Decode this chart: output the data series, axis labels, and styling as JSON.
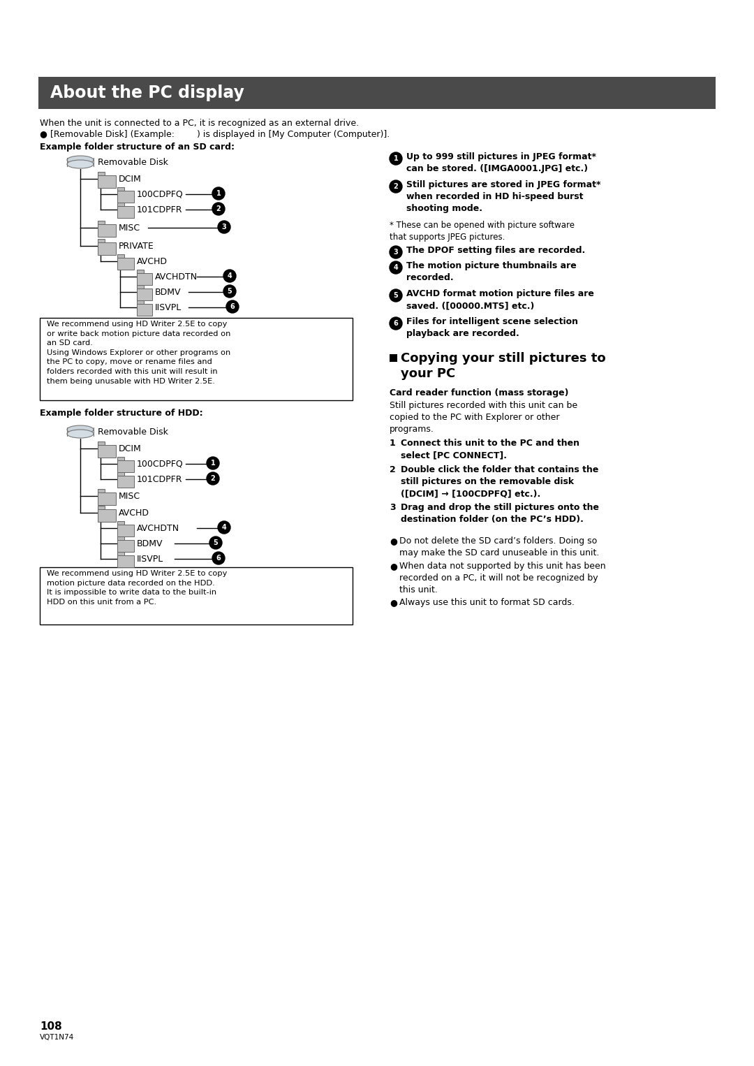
{
  "page_bg": "#ffffff",
  "header_bg": "#4a4a4a",
  "header_text": "About the PC display",
  "header_text_color": "#ffffff",
  "intro_line1": "When the unit is connected to a PC, it is recognized as an external drive.",
  "intro_line2": "● [Removable Disk] (Example:        ) is displayed in [My Computer (Computer)].",
  "sd_label": "Example folder structure of an SD card:",
  "hdd_label": "Example folder structure of HDD:",
  "card_reader_title": "Card reader function (mass storage)",
  "card_reader_body": "Still pictures recorded with this unit can be\ncopied to the PC with Explorer or other\nprograms.",
  "steps": [
    "Connect this unit to the PC and then\nselect [PC CONNECT].",
    "Double click the folder that contains the\nstill pictures on the removable disk\n([DCIM] → [100CDPFQ] etc.).",
    "Drag and drop the still pictures onto the\ndestination folder (on the PC’s HDD)."
  ],
  "bullets_right": [
    "Do not delete the SD card’s folders. Doing so\nmay make the SD card unuseable in this unit.",
    "When data not supported by this unit has been\nrecorded on a PC, it will not be recognized by\nthis unit.",
    "Always use this unit to format SD cards."
  ],
  "sd_note": "We recommend using HD Writer 2.5E to copy\nor write back motion picture data recorded on\nan SD card.\nUsing Windows Explorer or other programs on\nthe PC to copy, move or rename files and\nfolders recorded with this unit will result in\nthem being unusable with HD Writer 2.5E.",
  "hdd_note": "We recommend using HD Writer 2.5E to copy\nmotion picture data recorded on the HDD.\nIt is impossible to write data to the built-in\nHDD on this unit from a PC.",
  "page_number": "108",
  "page_code": "VQT1N74"
}
